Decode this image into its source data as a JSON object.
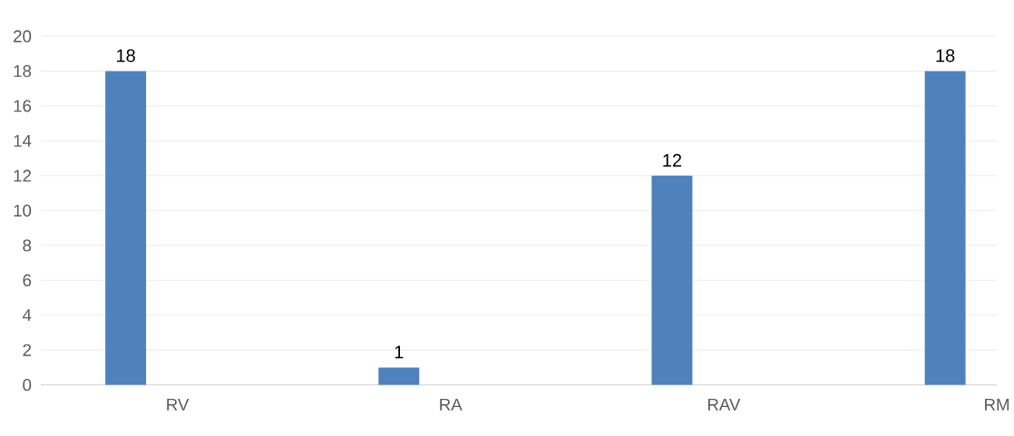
{
  "chart_data": {
    "type": "bar",
    "categories": [
      "RV",
      "RA",
      "RAV",
      "RM"
    ],
    "values": [
      18,
      1,
      12,
      18
    ],
    "color": "#4f81bd",
    "data_labels": true,
    "ylim": [
      0,
      20
    ],
    "yticks": [
      0,
      2,
      4,
      6,
      8,
      10,
      12,
      14,
      16,
      18,
      20
    ],
    "grid": "y"
  }
}
